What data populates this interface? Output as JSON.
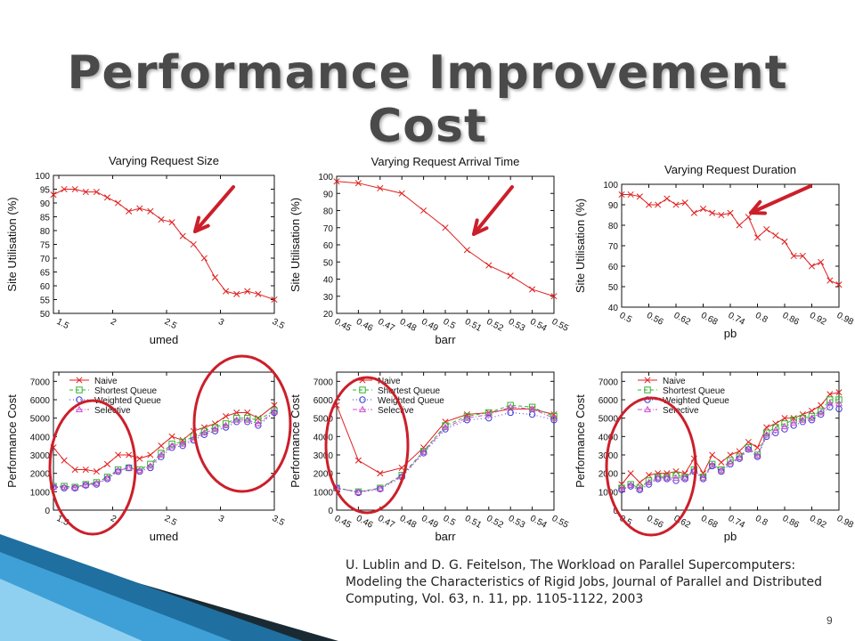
{
  "slide": {
    "title": "Performance Improvement Cost",
    "citation": "U. Lublin and D. G. Feitelson, The Workload on Parallel Supercomputers: Modeling the Characteristics of Rigid Jobs, Journal of Parallel and Distributed Computing, Vol. 63, n. 11, pp. 1105-1122, 2003",
    "page_number": "9"
  },
  "colors": {
    "naive": "#e0201f",
    "shortest_queue": "#2fb52f",
    "weighted_queue": "#3b3bd9",
    "selective": "#d050d0",
    "annotation_red": "#cc1f2a"
  },
  "chart_data": [
    {
      "type": "line",
      "title": "Varying Request Size",
      "xlabel": "umed",
      "ylabel": "Site Utilisation (%)",
      "x_ticks": [
        "1.5",
        "2",
        "2.5",
        "3",
        "3.5"
      ],
      "xlim": [
        1.45,
        3.5
      ],
      "y_ticks": [
        "50",
        "55",
        "60",
        "65",
        "70",
        "75",
        "80",
        "85",
        "90",
        "95",
        "100"
      ],
      "ylim": [
        50,
        100
      ],
      "series": [
        {
          "key": "naive",
          "x": [
            1.45,
            1.55,
            1.65,
            1.75,
            1.85,
            1.95,
            2.05,
            2.15,
            2.25,
            2.35,
            2.45,
            2.55,
            2.65,
            2.75,
            2.85,
            2.95,
            3.05,
            3.15,
            3.25,
            3.35,
            3.5
          ],
          "values": [
            93,
            95,
            95,
            94,
            94,
            92,
            90,
            87,
            88,
            87,
            84,
            83,
            78,
            75,
            70,
            63,
            58,
            57,
            58,
            57,
            55
          ]
        }
      ]
    },
    {
      "type": "line",
      "title": "Varying Request Arrival Time",
      "xlabel": "barr",
      "ylabel": "Site Utilisation (%)",
      "x_ticks": [
        "0.45",
        "0.46",
        "0.47",
        "0.48",
        "0.49",
        "0.5",
        "0.51",
        "0.52",
        "0.53",
        "0.54",
        "0.55"
      ],
      "xlim": [
        0.45,
        0.55
      ],
      "y_ticks": [
        "20",
        "30",
        "40",
        "50",
        "60",
        "70",
        "80",
        "90",
        "100"
      ],
      "ylim": [
        20,
        100
      ],
      "series": [
        {
          "key": "naive",
          "x": [
            0.45,
            0.46,
            0.47,
            0.48,
            0.49,
            0.5,
            0.51,
            0.52,
            0.53,
            0.54,
            0.55
          ],
          "values": [
            97,
            96,
            93,
            90,
            80,
            70,
            57,
            48,
            42,
            34,
            30
          ]
        }
      ]
    },
    {
      "type": "line",
      "title": "Varying Request Duration",
      "xlabel": "pb",
      "ylabel": "Site Utilisation (%)",
      "x_ticks": [
        "0.5",
        "0.56",
        "0.62",
        "0.68",
        "0.74",
        "0.8",
        "0.86",
        "0.92",
        "0.98"
      ],
      "xlim": [
        0.5,
        0.98
      ],
      "y_ticks": [
        "40",
        "50",
        "60",
        "70",
        "80",
        "90",
        "100"
      ],
      "ylim": [
        40,
        100
      ],
      "series": [
        {
          "key": "naive",
          "x": [
            0.5,
            0.52,
            0.54,
            0.56,
            0.58,
            0.6,
            0.62,
            0.64,
            0.66,
            0.68,
            0.7,
            0.72,
            0.74,
            0.76,
            0.78,
            0.8,
            0.82,
            0.84,
            0.86,
            0.88,
            0.9,
            0.92,
            0.94,
            0.96,
            0.98
          ],
          "values": [
            95,
            95,
            94,
            90,
            90,
            93,
            90,
            91,
            86,
            88,
            86,
            85,
            86,
            80,
            84,
            74,
            78,
            75,
            72,
            65,
            65,
            60,
            62,
            53,
            51
          ]
        }
      ]
    },
    {
      "type": "line",
      "title": "",
      "xlabel": "umed",
      "ylabel": "Performance Cost",
      "x_ticks": [
        "1.5",
        "2",
        "2.5",
        "3",
        "3.5"
      ],
      "xlim": [
        1.45,
        3.5
      ],
      "y_ticks": [
        "0",
        "1000",
        "2000",
        "3000",
        "4000",
        "5000",
        "6000",
        "7000"
      ],
      "ylim": [
        0,
        7500
      ],
      "legend": "top-left",
      "series": [
        {
          "key": "naive",
          "name": "Naive",
          "x": [
            1.45,
            1.55,
            1.65,
            1.75,
            1.85,
            1.95,
            2.05,
            2.15,
            2.25,
            2.35,
            2.45,
            2.55,
            2.65,
            2.75,
            2.85,
            2.95,
            3.05,
            3.15,
            3.25,
            3.35,
            3.5
          ],
          "values": [
            3400,
            2700,
            2200,
            2200,
            2100,
            2500,
            3000,
            3000,
            2800,
            3000,
            3500,
            4000,
            3800,
            4300,
            4500,
            4700,
            5100,
            5300,
            5300,
            5000,
            5700
          ]
        },
        {
          "key": "shortest_queue",
          "name": "Shortest Queue",
          "x": [
            1.45,
            1.55,
            1.65,
            1.75,
            1.85,
            1.95,
            2.05,
            2.15,
            2.25,
            2.35,
            2.45,
            2.55,
            2.65,
            2.75,
            2.85,
            2.95,
            3.05,
            3.15,
            3.25,
            3.35,
            3.5
          ],
          "values": [
            1300,
            1300,
            1250,
            1400,
            1500,
            1800,
            2200,
            2300,
            2200,
            2500,
            3100,
            3600,
            3700,
            4000,
            4300,
            4500,
            4700,
            5000,
            5000,
            4900,
            5400
          ]
        },
        {
          "key": "weighted_queue",
          "name": "Weighted Queue",
          "x": [
            1.45,
            1.55,
            1.65,
            1.75,
            1.85,
            1.95,
            2.05,
            2.15,
            2.25,
            2.35,
            2.45,
            2.55,
            2.65,
            2.75,
            2.85,
            2.95,
            3.05,
            3.15,
            3.25,
            3.35,
            3.5
          ],
          "values": [
            1250,
            1200,
            1200,
            1350,
            1400,
            1700,
            2100,
            2300,
            2100,
            2300,
            2900,
            3400,
            3500,
            3800,
            4100,
            4300,
            4500,
            4800,
            4800,
            4600,
            5300
          ]
        },
        {
          "key": "selective",
          "name": "Selective",
          "x": [
            1.45,
            1.55,
            1.65,
            1.75,
            1.85,
            1.95,
            2.05,
            2.15,
            2.25,
            2.35,
            2.45,
            2.55,
            2.65,
            2.75,
            2.85,
            2.95,
            3.05,
            3.15,
            3.25,
            3.35,
            3.5
          ],
          "values": [
            1280,
            1250,
            1230,
            1380,
            1450,
            1750,
            2150,
            2300,
            2150,
            2400,
            3000,
            3500,
            3600,
            3900,
            4200,
            4400,
            4600,
            4900,
            4900,
            4700,
            5350
          ]
        }
      ]
    },
    {
      "type": "line",
      "title": "",
      "xlabel": "barr",
      "ylabel": "Performance Cost",
      "x_ticks": [
        "0.45",
        "0.46",
        "0.47",
        "0.48",
        "0.49",
        "0.5",
        "0.51",
        "0.52",
        "0.53",
        "0.54",
        "0.55"
      ],
      "xlim": [
        0.45,
        0.55
      ],
      "y_ticks": [
        "0",
        "1000",
        "2000",
        "3000",
        "4000",
        "5000",
        "6000",
        "7000"
      ],
      "ylim": [
        0,
        7500
      ],
      "legend": "top-right",
      "series": [
        {
          "key": "naive",
          "name": "Naive",
          "x": [
            0.45,
            0.46,
            0.47,
            0.48,
            0.49,
            0.5,
            0.51,
            0.52,
            0.53,
            0.54,
            0.55
          ],
          "values": [
            5700,
            2700,
            2000,
            2300,
            3400,
            4800,
            5200,
            5300,
            5500,
            5500,
            5200
          ]
        },
        {
          "key": "shortest_queue",
          "name": "Shortest Queue",
          "x": [
            0.45,
            0.46,
            0.47,
            0.48,
            0.49,
            0.5,
            0.51,
            0.52,
            0.53,
            0.54,
            0.55
          ],
          "values": [
            1200,
            1000,
            1200,
            1900,
            3200,
            4600,
            5100,
            5300,
            5700,
            5600,
            5100
          ]
        },
        {
          "key": "weighted_queue",
          "name": "Weighted Queue",
          "x": [
            0.45,
            0.46,
            0.47,
            0.48,
            0.49,
            0.5,
            0.51,
            0.52,
            0.53,
            0.54,
            0.55
          ],
          "values": [
            1200,
            950,
            1150,
            1800,
            3100,
            4400,
            4900,
            5000,
            5300,
            5200,
            4900
          ]
        },
        {
          "key": "selective",
          "name": "Selective",
          "x": [
            0.45,
            0.46,
            0.47,
            0.48,
            0.49,
            0.5,
            0.51,
            0.52,
            0.53,
            0.54,
            0.55
          ],
          "values": [
            1200,
            980,
            1180,
            1850,
            3150,
            4500,
            5000,
            5200,
            5600,
            5500,
            5000
          ]
        }
      ]
    },
    {
      "type": "line",
      "title": "",
      "xlabel": "pb",
      "ylabel": "Performance Cost",
      "x_ticks": [
        "0.5",
        "0.56",
        "0.62",
        "0.68",
        "0.74",
        "0.8",
        "0.86",
        "0.92",
        "0.98"
      ],
      "xlim": [
        0.5,
        0.98
      ],
      "y_ticks": [
        "0",
        "1000",
        "2000",
        "3000",
        "4000",
        "5000",
        "6000",
        "7000"
      ],
      "ylim": [
        0,
        7500
      ],
      "legend": "top-left",
      "series": [
        {
          "key": "naive",
          "name": "Naive",
          "x": [
            0.5,
            0.52,
            0.54,
            0.56,
            0.58,
            0.6,
            0.62,
            0.64,
            0.66,
            0.68,
            0.7,
            0.72,
            0.74,
            0.76,
            0.78,
            0.8,
            0.82,
            0.84,
            0.86,
            0.88,
            0.9,
            0.92,
            0.94,
            0.96,
            0.98
          ],
          "values": [
            1400,
            2000,
            1500,
            1900,
            2000,
            2000,
            2100,
            2000,
            2800,
            2000,
            3000,
            2600,
            3000,
            3200,
            3700,
            3400,
            4500,
            4700,
            5000,
            5000,
            5200,
            5400,
            5700,
            6300,
            6400
          ]
        },
        {
          "key": "shortest_queue",
          "name": "Shortest Queue",
          "x": [
            0.5,
            0.52,
            0.54,
            0.56,
            0.58,
            0.6,
            0.62,
            0.64,
            0.66,
            0.68,
            0.7,
            0.72,
            0.74,
            0.76,
            0.78,
            0.8,
            0.82,
            0.84,
            0.86,
            0.88,
            0.9,
            0.92,
            0.94,
            0.96,
            0.98
          ],
          "values": [
            1200,
            1400,
            1200,
            1600,
            1800,
            1800,
            1900,
            1800,
            2200,
            1800,
            2500,
            2200,
            2700,
            2900,
            3400,
            3000,
            4200,
            4500,
            4700,
            4900,
            5000,
            5100,
            5400,
            6000,
            6000
          ]
        },
        {
          "key": "weighted_queue",
          "name": "Weighted Queue",
          "x": [
            0.5,
            0.52,
            0.54,
            0.56,
            0.58,
            0.6,
            0.62,
            0.64,
            0.66,
            0.68,
            0.7,
            0.72,
            0.74,
            0.76,
            0.78,
            0.8,
            0.82,
            0.84,
            0.86,
            0.88,
            0.9,
            0.92,
            0.94,
            0.96,
            0.98
          ],
          "values": [
            1100,
            1300,
            1100,
            1400,
            1700,
            1700,
            1600,
            1700,
            2100,
            1700,
            2400,
            2100,
            2500,
            2800,
            3300,
            2900,
            4000,
            4200,
            4400,
            4600,
            4800,
            4900,
            5200,
            5600,
            5500
          ]
        },
        {
          "key": "selective",
          "name": "Selective",
          "x": [
            0.5,
            0.52,
            0.54,
            0.56,
            0.58,
            0.6,
            0.62,
            0.64,
            0.66,
            0.68,
            0.7,
            0.72,
            0.74,
            0.76,
            0.78,
            0.8,
            0.82,
            0.84,
            0.86,
            0.88,
            0.9,
            0.92,
            0.94,
            0.96,
            0.98
          ],
          "values": [
            1150,
            1350,
            1150,
            1500,
            1750,
            1750,
            1750,
            1750,
            2150,
            1750,
            2450,
            2150,
            2600,
            2850,
            3350,
            2950,
            4100,
            4350,
            4550,
            4750,
            4900,
            5000,
            5300,
            5800,
            5800
          ]
        }
      ]
    }
  ]
}
